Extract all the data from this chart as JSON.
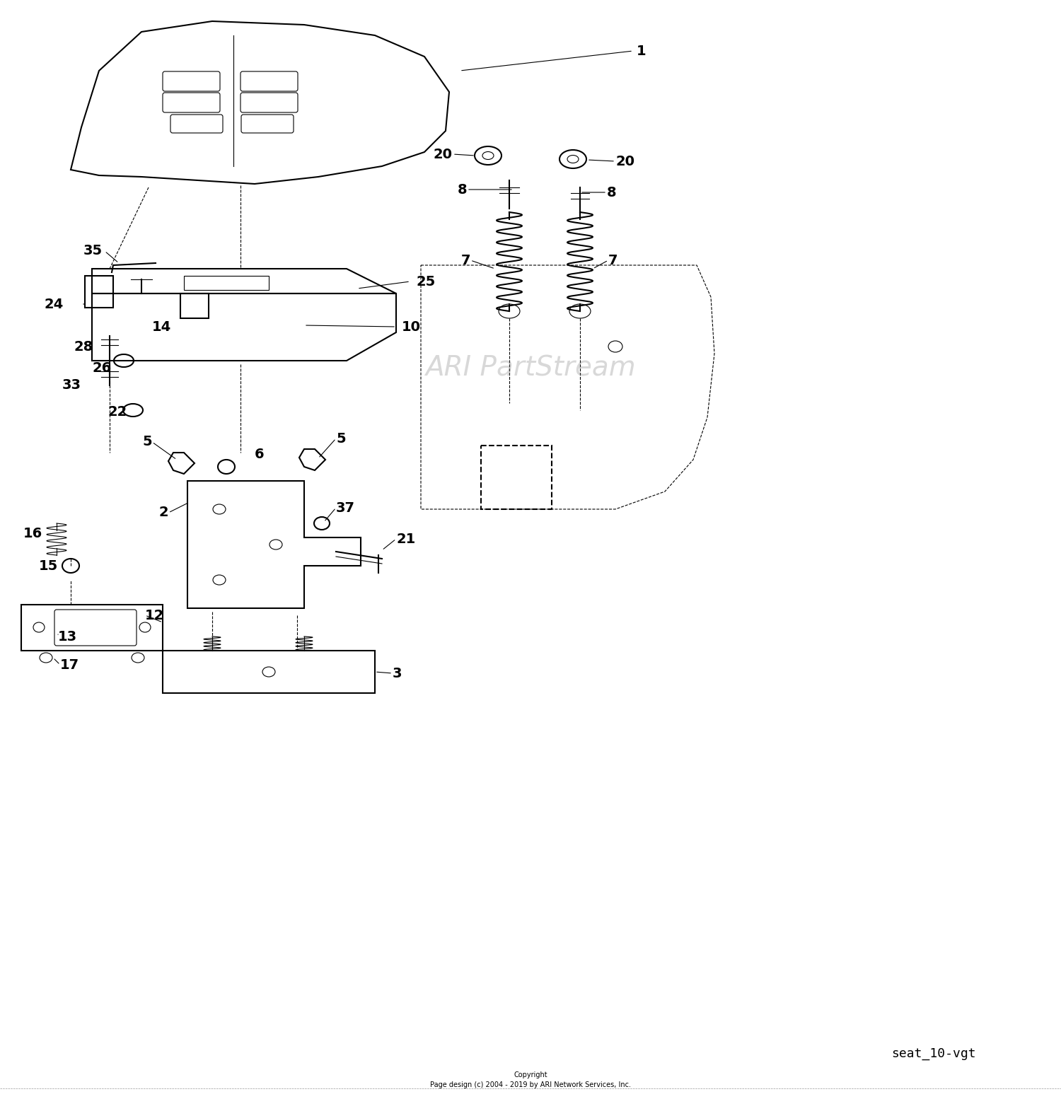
{
  "watermark": "ARI PartStream",
  "bottom_label": "seat_10-vgt",
  "copyright_line1": "Copyright",
  "copyright_line2": "Page design (c) 2004 - 2019 by ARI Network Services, Inc.",
  "bg_color": "#ffffff",
  "line_color": "#000000"
}
